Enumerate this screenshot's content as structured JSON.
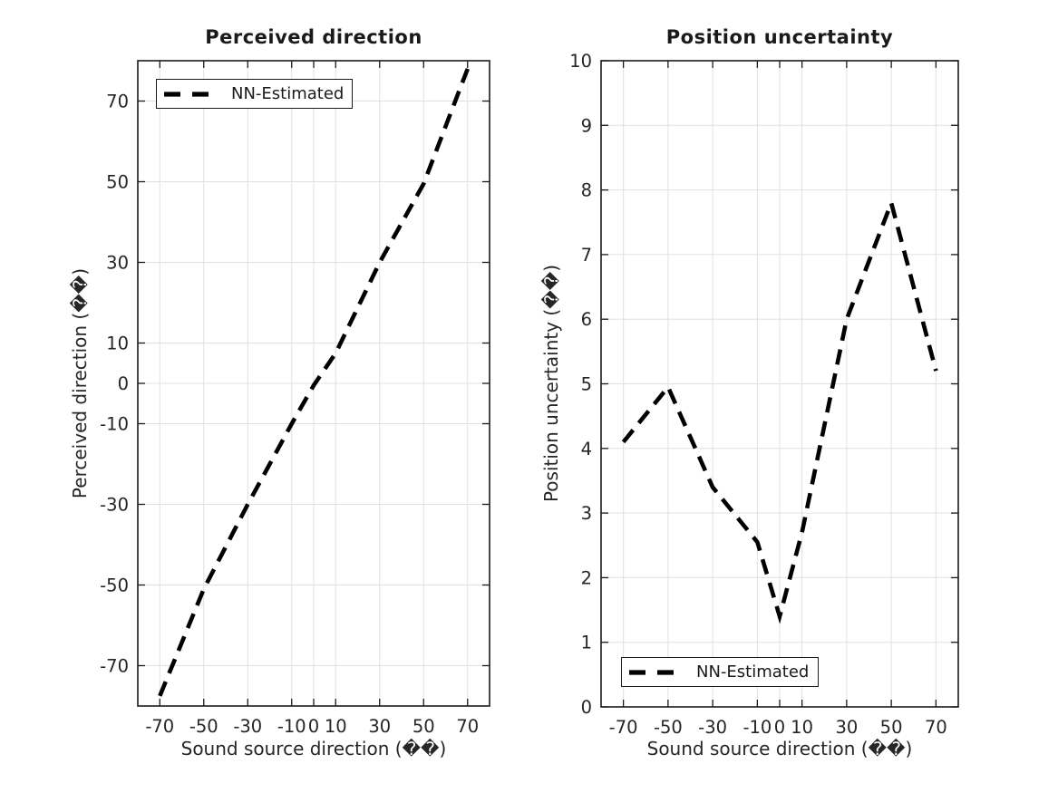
{
  "style": {
    "background": "#ffffff",
    "grid_color": "#e0e0e0",
    "axis_color": "#1a1a1a",
    "text_color": "#262626",
    "line_color": "#000000"
  },
  "chart_data": [
    {
      "type": "line",
      "title": "Perceived direction",
      "xlabel": "Sound source direction (��)",
      "ylabel": "Perceived direction (��)",
      "grid": true,
      "xlim": [
        -80,
        80
      ],
      "ylim": [
        -80,
        80
      ],
      "xticks": [
        -70,
        -50,
        -30,
        -10,
        0,
        10,
        30,
        50,
        70
      ],
      "yticks": [
        -70,
        -50,
        -30,
        -10,
        0,
        10,
        30,
        50,
        70
      ],
      "legend": {
        "label": "NN-Estimated",
        "position": "top-left",
        "line_style": "dashed"
      },
      "series": [
        {
          "name": "NN-Estimated",
          "style": "dashed",
          "color": "#000000",
          "x": [
            -70,
            -50,
            -30,
            -10,
            0,
            10,
            30,
            50,
            70
          ],
          "y": [
            -77.5,
            -51,
            -30,
            -10,
            -0.5,
            7.5,
            30,
            49.5,
            78
          ]
        }
      ]
    },
    {
      "type": "line",
      "title": "Position uncertainty",
      "xlabel": "Sound source direction (��)",
      "ylabel": "Position uncertainty (��)",
      "grid": true,
      "xlim": [
        -80,
        80
      ],
      "ylim": [
        0,
        10
      ],
      "xticks": [
        -70,
        -50,
        -30,
        -10,
        0,
        10,
        30,
        50,
        70
      ],
      "yticks": [
        0,
        1,
        2,
        3,
        4,
        5,
        6,
        7,
        8,
        9,
        10
      ],
      "legend": {
        "label": "NN-Estimated",
        "position": "bottom-left",
        "line_style": "dashed"
      },
      "series": [
        {
          "name": "NN-Estimated",
          "style": "dashed",
          "color": "#000000",
          "x": [
            -70,
            -50,
            -30,
            -10,
            0,
            10,
            30,
            50,
            70
          ],
          "y": [
            4.1,
            4.95,
            3.4,
            2.55,
            1.4,
            2.7,
            6.0,
            7.8,
            5.2
          ]
        }
      ]
    }
  ]
}
